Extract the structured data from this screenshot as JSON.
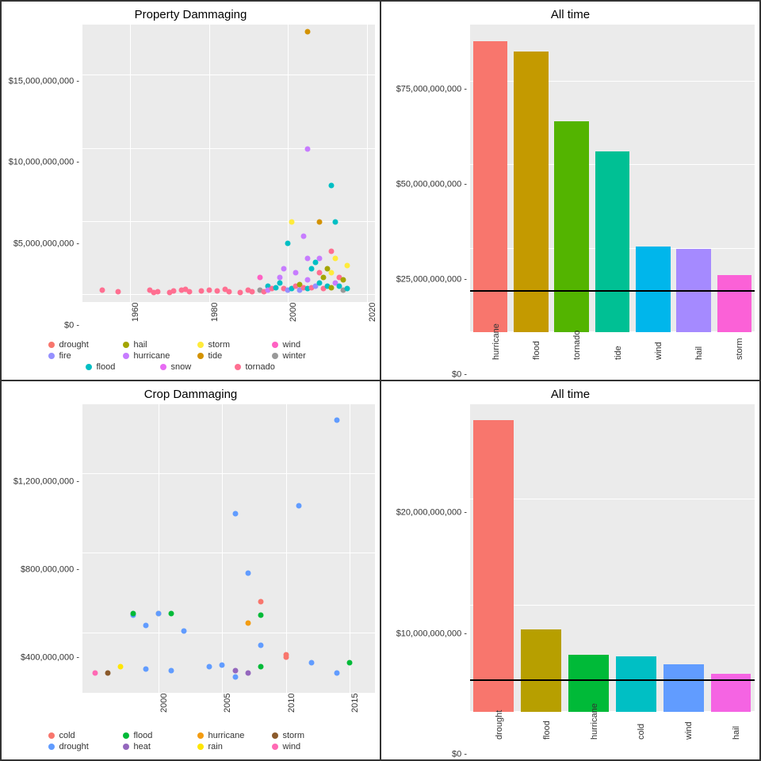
{
  "global": {
    "panel_bg": "#ebebeb",
    "grid_color": "#ffffff",
    "title_fontsize": 15,
    "tick_fontsize": 11,
    "point_radius": 3.5
  },
  "colors": {
    "drought_red": "#f8766d",
    "fire_blue": "#9590ff",
    "flood_teal": "#00bfc4",
    "hail_olive": "#a3a500",
    "hurricane_plum": "#c77cff",
    "snow_orange": "#e76bf3",
    "storm_yellow": "#ffeb3b",
    "tide_gold": "#d39200",
    "tornado_rose": "#ff6f91",
    "wind_pink": "#ff61c3",
    "winter_gray": "#999999",
    "cold_red": "#f8766d",
    "drought2_blue": "#619cff",
    "flood2_green": "#00ba38",
    "heat_purple": "#b79f00",
    "hurricane2_orange": "#f39c12",
    "rain_yellow": "#ffe600",
    "storm2_brown": "#8b5a2b",
    "wind2_pink": "#ff69b4",
    "heat2_purple": "#9467bd"
  },
  "tl": {
    "title": "Property Dammaging",
    "type": "scatter",
    "xlim": [
      1948,
      2022
    ],
    "ylim": [
      -500000000,
      18500000000
    ],
    "yticks": [
      0,
      5000000000,
      10000000000,
      15000000000
    ],
    "yticklabels": [
      "$0",
      "$5,000,000,000",
      "$10,000,000,000",
      "$15,000,000,000"
    ],
    "xticks": [
      1960,
      1980,
      2000,
      2020
    ],
    "xticklabels": [
      "1960",
      "1980",
      "2000",
      "2020"
    ],
    "legend": [
      {
        "label": "drought",
        "color": "#f8766d"
      },
      {
        "label": "hail",
        "color": "#a3a500"
      },
      {
        "label": "storm",
        "color": "#ffeb3b"
      },
      {
        "label": "wind",
        "color": "#ff61c3"
      },
      {
        "label": "fire",
        "color": "#9590ff"
      },
      {
        "label": "hurricane",
        "color": "#c77cff"
      },
      {
        "label": "tide",
        "color": "#d39200"
      },
      {
        "label": "winter",
        "color": "#999999"
      },
      {
        "label": "flood",
        "color": "#00bfc4"
      },
      {
        "label": "snow",
        "color": "#e76bf3"
      },
      {
        "label": "tornado",
        "color": "#ff6f91"
      }
    ],
    "points": [
      {
        "x": 1953,
        "y": 300000000,
        "c": "#ff6f91"
      },
      {
        "x": 1957,
        "y": 200000000,
        "c": "#ff6f91"
      },
      {
        "x": 1965,
        "y": 300000000,
        "c": "#ff6f91"
      },
      {
        "x": 1966,
        "y": 150000000,
        "c": "#ff6f91"
      },
      {
        "x": 1967,
        "y": 200000000,
        "c": "#ff6f91"
      },
      {
        "x": 1970,
        "y": 150000000,
        "c": "#ff6f91"
      },
      {
        "x": 1971,
        "y": 250000000,
        "c": "#ff6f91"
      },
      {
        "x": 1973,
        "y": 300000000,
        "c": "#ff6f91"
      },
      {
        "x": 1974,
        "y": 350000000,
        "c": "#ff6f91"
      },
      {
        "x": 1975,
        "y": 200000000,
        "c": "#ff6f91"
      },
      {
        "x": 1978,
        "y": 250000000,
        "c": "#ff6f91"
      },
      {
        "x": 1980,
        "y": 300000000,
        "c": "#ff6f91"
      },
      {
        "x": 1982,
        "y": 250000000,
        "c": "#ff6f91"
      },
      {
        "x": 1984,
        "y": 350000000,
        "c": "#ff6f91"
      },
      {
        "x": 1985,
        "y": 200000000,
        "c": "#ff6f91"
      },
      {
        "x": 1988,
        "y": 150000000,
        "c": "#ff6f91"
      },
      {
        "x": 1990,
        "y": 300000000,
        "c": "#ff6f91"
      },
      {
        "x": 1991,
        "y": 200000000,
        "c": "#ff6f91"
      },
      {
        "x": 1993,
        "y": 1200000000,
        "c": "#ff61c3"
      },
      {
        "x": 1993,
        "y": 300000000,
        "c": "#999999"
      },
      {
        "x": 1994,
        "y": 200000000,
        "c": "#ff6f91"
      },
      {
        "x": 1995,
        "y": 600000000,
        "c": "#00bfc4"
      },
      {
        "x": 1995,
        "y": 300000000,
        "c": "#c77cff"
      },
      {
        "x": 1996,
        "y": 400000000,
        "c": "#ff6f91"
      },
      {
        "x": 1997,
        "y": 500000000,
        "c": "#00bfc4"
      },
      {
        "x": 1998,
        "y": 800000000,
        "c": "#00bfc4"
      },
      {
        "x": 1998,
        "y": 1200000000,
        "c": "#c77cff"
      },
      {
        "x": 1999,
        "y": 1800000000,
        "c": "#c77cff"
      },
      {
        "x": 1999,
        "y": 400000000,
        "c": "#ff6f91"
      },
      {
        "x": 2000,
        "y": 3500000000,
        "c": "#00bfc4"
      },
      {
        "x": 2000,
        "y": 300000000,
        "c": "#9590ff"
      },
      {
        "x": 2001,
        "y": 5000000000,
        "c": "#ffeb3b"
      },
      {
        "x": 2001,
        "y": 400000000,
        "c": "#00bfc4"
      },
      {
        "x": 2002,
        "y": 1500000000,
        "c": "#c77cff"
      },
      {
        "x": 2002,
        "y": 600000000,
        "c": "#ff6f91"
      },
      {
        "x": 2003,
        "y": 700000000,
        "c": "#a3a500"
      },
      {
        "x": 2003,
        "y": 300000000,
        "c": "#9590ff"
      },
      {
        "x": 2004,
        "y": 4000000000,
        "c": "#c77cff"
      },
      {
        "x": 2004,
        "y": 500000000,
        "c": "#ff6f91"
      },
      {
        "x": 2005,
        "y": 18000000000,
        "c": "#d39200"
      },
      {
        "x": 2005,
        "y": 10000000000,
        "c": "#c77cff"
      },
      {
        "x": 2005,
        "y": 2500000000,
        "c": "#c77cff"
      },
      {
        "x": 2005,
        "y": 1000000000,
        "c": "#c77cff"
      },
      {
        "x": 2005,
        "y": 400000000,
        "c": "#00bfc4"
      },
      {
        "x": 2006,
        "y": 1800000000,
        "c": "#00bfc4"
      },
      {
        "x": 2006,
        "y": 500000000,
        "c": "#ff6f91"
      },
      {
        "x": 2007,
        "y": 2200000000,
        "c": "#00bfc4"
      },
      {
        "x": 2007,
        "y": 600000000,
        "c": "#9590ff"
      },
      {
        "x": 2008,
        "y": 5000000000,
        "c": "#d39200"
      },
      {
        "x": 2008,
        "y": 2500000000,
        "c": "#c77cff"
      },
      {
        "x": 2008,
        "y": 1500000000,
        "c": "#ff6f91"
      },
      {
        "x": 2008,
        "y": 800000000,
        "c": "#00bfc4"
      },
      {
        "x": 2009,
        "y": 1200000000,
        "c": "#a3a500"
      },
      {
        "x": 2009,
        "y": 400000000,
        "c": "#ff6f91"
      },
      {
        "x": 2010,
        "y": 1800000000,
        "c": "#a3a500"
      },
      {
        "x": 2010,
        "y": 600000000,
        "c": "#00bfc4"
      },
      {
        "x": 2011,
        "y": 7500000000,
        "c": "#00bfc4"
      },
      {
        "x": 2011,
        "y": 3000000000,
        "c": "#ff6f91"
      },
      {
        "x": 2011,
        "y": 1500000000,
        "c": "#ffeb3b"
      },
      {
        "x": 2011,
        "y": 500000000,
        "c": "#a3a500"
      },
      {
        "x": 2012,
        "y": 2500000000,
        "c": "#ffeb3b"
      },
      {
        "x": 2012,
        "y": 5000000000,
        "c": "#00bfc4"
      },
      {
        "x": 2012,
        "y": 800000000,
        "c": "#c77cff"
      },
      {
        "x": 2013,
        "y": 1200000000,
        "c": "#ff6f91"
      },
      {
        "x": 2013,
        "y": 600000000,
        "c": "#00bfc4"
      },
      {
        "x": 2014,
        "y": 1000000000,
        "c": "#a3a500"
      },
      {
        "x": 2014,
        "y": 300000000,
        "c": "#999999"
      },
      {
        "x": 2015,
        "y": 2000000000,
        "c": "#ffeb3b"
      },
      {
        "x": 2015,
        "y": 400000000,
        "c": "#00bfc4"
      }
    ]
  },
  "tr": {
    "title": "All time",
    "type": "bar",
    "ylim": [
      0,
      92000000000
    ],
    "yticks": [
      0,
      25000000000,
      50000000000,
      75000000000
    ],
    "yticklabels": [
      "$0",
      "$25,000,000,000",
      "$50,000,000,000",
      "$75,000,000,000"
    ],
    "hline": 12000000000,
    "bars": [
      {
        "label": "hurricane",
        "value": 87000000000,
        "color": "#f8766d"
      },
      {
        "label": "flood",
        "value": 84000000000,
        "color": "#c49a00"
      },
      {
        "label": "tornado",
        "value": 63000000000,
        "color": "#53b400"
      },
      {
        "label": "tide",
        "value": 54000000000,
        "color": "#00c094"
      },
      {
        "label": "wind",
        "value": 25500000000,
        "color": "#00b6eb"
      },
      {
        "label": "hail",
        "value": 25000000000,
        "color": "#a58aff"
      },
      {
        "label": "storm",
        "value": 17000000000,
        "color": "#fb61d7"
      }
    ],
    "bar_width": 0.85
  },
  "bl": {
    "title": "Crop Dammaging",
    "type": "scatter",
    "xlim": [
      1994,
      2017
    ],
    "ylim": [
      100000000,
      1550000000
    ],
    "yticks": [
      400000000,
      800000000,
      1200000000
    ],
    "yticklabels": [
      "$400,000,000",
      "$800,000,000",
      "$1,200,000,000"
    ],
    "xticks": [
      2000,
      2005,
      2010,
      2015
    ],
    "xticklabels": [
      "2000",
      "2005",
      "2010",
      "2015"
    ],
    "legend": [
      {
        "label": "cold",
        "color": "#f8766d"
      },
      {
        "label": "flood",
        "color": "#00ba38"
      },
      {
        "label": "hurricane",
        "color": "#f39c12"
      },
      {
        "label": "storm",
        "color": "#8b5a2b"
      },
      {
        "label": "drought",
        "color": "#619cff"
      },
      {
        "label": "heat",
        "color": "#9467bd"
      },
      {
        "label": "rain",
        "color": "#ffe600"
      },
      {
        "label": "wind",
        "color": "#ff69b4"
      }
    ],
    "points": [
      {
        "x": 1995,
        "y": 200000000,
        "c": "#ff69b4"
      },
      {
        "x": 1996,
        "y": 200000000,
        "c": "#8b5a2b"
      },
      {
        "x": 1997,
        "y": 230000000,
        "c": "#ffe600"
      },
      {
        "x": 1998,
        "y": 490000000,
        "c": "#619cff"
      },
      {
        "x": 1998,
        "y": 500000000,
        "c": "#00ba38"
      },
      {
        "x": 1999,
        "y": 440000000,
        "c": "#619cff"
      },
      {
        "x": 1999,
        "y": 220000000,
        "c": "#619cff"
      },
      {
        "x": 2000,
        "y": 500000000,
        "c": "#f39c12"
      },
      {
        "x": 2000,
        "y": 500000000,
        "c": "#619cff"
      },
      {
        "x": 2001,
        "y": 500000000,
        "c": "#00ba38"
      },
      {
        "x": 2001,
        "y": 210000000,
        "c": "#619cff"
      },
      {
        "x": 2002,
        "y": 410000000,
        "c": "#619cff"
      },
      {
        "x": 2004,
        "y": 230000000,
        "c": "#619cff"
      },
      {
        "x": 2005,
        "y": 240000000,
        "c": "#619cff"
      },
      {
        "x": 2006,
        "y": 1000000000,
        "c": "#619cff"
      },
      {
        "x": 2006,
        "y": 210000000,
        "c": "#9467bd"
      },
      {
        "x": 2006,
        "y": 180000000,
        "c": "#619cff"
      },
      {
        "x": 2007,
        "y": 700000000,
        "c": "#619cff"
      },
      {
        "x": 2007,
        "y": 450000000,
        "c": "#f39c12"
      },
      {
        "x": 2007,
        "y": 200000000,
        "c": "#9467bd"
      },
      {
        "x": 2008,
        "y": 560000000,
        "c": "#f8766d"
      },
      {
        "x": 2008,
        "y": 490000000,
        "c": "#00ba38"
      },
      {
        "x": 2008,
        "y": 340000000,
        "c": "#619cff"
      },
      {
        "x": 2008,
        "y": 230000000,
        "c": "#00ba38"
      },
      {
        "x": 2010,
        "y": 290000000,
        "c": "#f8766d"
      },
      {
        "x": 2010,
        "y": 280000000,
        "c": "#f8766d"
      },
      {
        "x": 2011,
        "y": 1040000000,
        "c": "#619cff"
      },
      {
        "x": 2012,
        "y": 250000000,
        "c": "#619cff"
      },
      {
        "x": 2014,
        "y": 1470000000,
        "c": "#619cff"
      },
      {
        "x": 2014,
        "y": 200000000,
        "c": "#619cff"
      },
      {
        "x": 2015,
        "y": 250000000,
        "c": "#00ba38"
      }
    ]
  },
  "br": {
    "title": "All time",
    "type": "bar",
    "ylim": [
      0,
      29000000000
    ],
    "yticks": [
      0,
      10000000000,
      20000000000
    ],
    "yticklabels": [
      "$0",
      "$10,000,000,000",
      "$20,000,000,000"
    ],
    "hline": 2900000000,
    "bars": [
      {
        "label": "drought",
        "value": 27500000000,
        "color": "#f8766d"
      },
      {
        "label": "flood",
        "value": 7800000000,
        "color": "#b79f00"
      },
      {
        "label": "hurricane",
        "value": 5400000000,
        "color": "#00ba38"
      },
      {
        "label": "cold",
        "value": 5200000000,
        "color": "#00bfc4"
      },
      {
        "label": "wind",
        "value": 4500000000,
        "color": "#619cff"
      },
      {
        "label": "hail",
        "value": 3600000000,
        "color": "#f564e3"
      }
    ],
    "bar_width": 0.85
  }
}
